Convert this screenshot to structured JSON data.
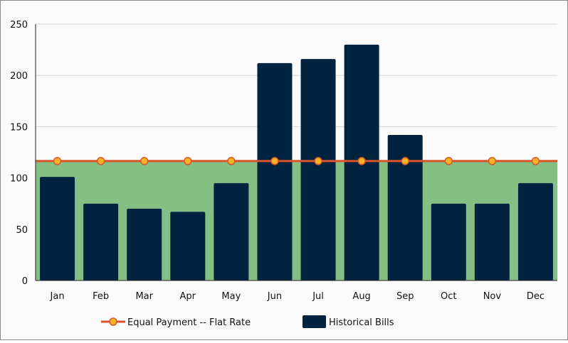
{
  "chart_data": {
    "type": "bar",
    "categories": [
      "Jan",
      "Feb",
      "Mar",
      "Apr",
      "May",
      "Jun",
      "Jul",
      "Aug",
      "Sep",
      "Oct",
      "Nov",
      "Dec"
    ],
    "series": [
      {
        "name": "Historical Bills",
        "type": "bar",
        "color": "#012340",
        "values": [
          101,
          75,
          70,
          67,
          95,
          212,
          216,
          230,
          142,
          75,
          75,
          95
        ]
      },
      {
        "name": "Equal Payment -- Flat Rate",
        "type": "line",
        "color": "#d9542b",
        "marker_color": "#f5b428",
        "values": [
          116.5,
          116.5,
          116.5,
          116.5,
          116.5,
          116.5,
          116.5,
          116.5,
          116.5,
          116.5,
          116.5,
          116.5
        ]
      }
    ],
    "ylim": [
      0,
      250
    ],
    "yticks": [
      "0",
      "50",
      "100",
      "150",
      "200",
      "250"
    ],
    "area_fill_color": "#84c084",
    "grid": true,
    "legend_position": "bottom",
    "legend": [
      "Equal Payment -- Flat Rate",
      "Historical Bills"
    ]
  }
}
